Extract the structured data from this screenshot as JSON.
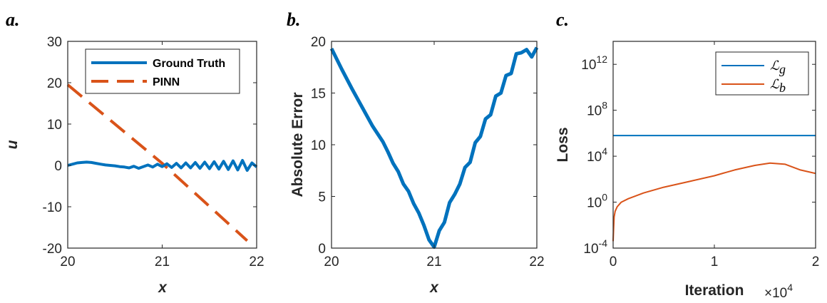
{
  "chart_data": [
    {
      "panel_label": "a.",
      "type": "line",
      "xlabel": "x",
      "ylabel": "u",
      "xlim": [
        20,
        22
      ],
      "ylim": [
        -20,
        30
      ],
      "xticks": [
        "20",
        "21",
        "22"
      ],
      "yticks": [
        "-20",
        "-10",
        "0",
        "10",
        "20",
        "30"
      ],
      "legend_position": "top-right",
      "series": [
        {
          "name": "Ground Truth",
          "color": "#0072BD",
          "style": "solid",
          "x": [
            20.0,
            20.05,
            20.1,
            20.15,
            20.2,
            20.25,
            20.3,
            20.35,
            20.4,
            20.45,
            20.5,
            20.55,
            20.6,
            20.65,
            20.7,
            20.75,
            20.8,
            20.85,
            20.9,
            20.95,
            21.0,
            21.05,
            21.1,
            21.15,
            21.2,
            21.25,
            21.3,
            21.35,
            21.4,
            21.45,
            21.5,
            21.55,
            21.6,
            21.65,
            21.7,
            21.75,
            21.8,
            21.85,
            21.9,
            21.95,
            22.0
          ],
          "y": [
            0,
            0.3,
            0.6,
            0.7,
            0.8,
            0.7,
            0.5,
            0.3,
            0.1,
            0.0,
            -0.1,
            -0.3,
            -0.4,
            -0.6,
            -0.2,
            -0.7,
            -0.3,
            0.1,
            -0.4,
            0.3,
            -0.3,
            0.4,
            -0.5,
            0.5,
            -0.6,
            0.6,
            -0.6,
            0.7,
            -0.7,
            0.8,
            -0.8,
            0.9,
            -0.9,
            1.0,
            -1.0,
            1.1,
            -1.1,
            1.2,
            -1.2,
            0.6,
            -0.4
          ]
        },
        {
          "name": "PINN",
          "color": "#D95319",
          "style": "dashed",
          "x": [
            20.0,
            21.0,
            21.9
          ],
          "y": [
            19.5,
            0.5,
            -18.2
          ]
        }
      ]
    },
    {
      "panel_label": "b.",
      "type": "line",
      "xlabel": "x",
      "ylabel": "Absolute Error",
      "xlim": [
        20,
        22
      ],
      "ylim": [
        0,
        20
      ],
      "xticks": [
        "20",
        "21",
        "22"
      ],
      "yticks": [
        "0",
        "5",
        "10",
        "15",
        "20"
      ],
      "series": [
        {
          "name": "",
          "color": "#0072BD",
          "style": "solid",
          "x": [
            20.0,
            20.1,
            20.2,
            20.3,
            20.4,
            20.5,
            20.55,
            20.6,
            20.65,
            20.7,
            20.75,
            20.8,
            20.85,
            20.9,
            20.95,
            21.0,
            21.05,
            21.1,
            21.15,
            21.2,
            21.25,
            21.3,
            21.35,
            21.4,
            21.45,
            21.5,
            21.55,
            21.6,
            21.65,
            21.7,
            21.75,
            21.8,
            21.85,
            21.9,
            21.95,
            22.0
          ],
          "y": [
            19.3,
            17.3,
            15.4,
            13.6,
            11.8,
            10.3,
            9.3,
            8.2,
            7.4,
            6.2,
            5.5,
            4.3,
            3.4,
            2.2,
            0.8,
            0.1,
            1.7,
            2.5,
            4.4,
            5.2,
            6.2,
            7.8,
            8.3,
            10.2,
            10.8,
            12.5,
            12.9,
            14.7,
            15.0,
            16.7,
            16.9,
            18.8,
            18.9,
            19.2,
            18.5,
            19.4
          ]
        }
      ]
    },
    {
      "panel_label": "c.",
      "type": "line",
      "xlabel": "Iteration",
      "ylabel": "Loss",
      "x_multiplier": "×10^4",
      "xlim": [
        0,
        2
      ],
      "yscale": "log",
      "ylim_log10": [
        -4,
        14
      ],
      "xticks": [
        "0",
        "1",
        "2"
      ],
      "yticks": [
        "10^-4",
        "10^0",
        "10^4",
        "10^8",
        "10^12"
      ],
      "legend_position": "top-right",
      "series": [
        {
          "name": "L_g",
          "color": "#0072BD",
          "style": "solid",
          "x": [
            0,
            2
          ],
          "log10_y": [
            5.8,
            5.8
          ]
        },
        {
          "name": "L_b",
          "color": "#D95319",
          "style": "solid",
          "x": [
            0,
            0.005,
            0.01,
            0.02,
            0.04,
            0.08,
            0.15,
            0.3,
            0.5,
            0.75,
            1.0,
            1.2,
            1.4,
            1.55,
            1.7,
            1.85,
            2.0
          ],
          "log10_y": [
            -3.4,
            -2.3,
            -1.3,
            -0.8,
            -0.4,
            0.0,
            0.3,
            0.8,
            1.3,
            1.8,
            2.3,
            2.8,
            3.2,
            3.4,
            3.3,
            2.8,
            2.5
          ]
        }
      ]
    }
  ]
}
